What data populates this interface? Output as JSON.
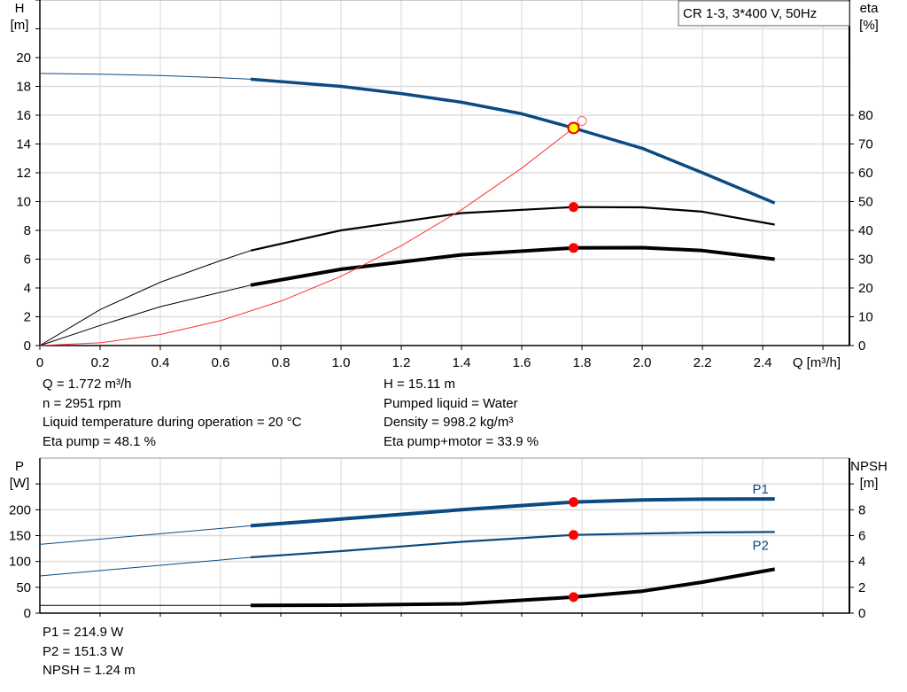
{
  "chart_data": [
    {
      "type": "line",
      "title_box": "CR 1-3, 3*400 V, 50Hz",
      "xlabel": "Q [m³/h]",
      "ylabel": [
        "H",
        "[m]"
      ],
      "y2label": [
        "eta",
        "[%]"
      ],
      "xlim": [
        0,
        2.688
      ],
      "ylim": [
        0,
        24
      ],
      "y2lim": [
        0,
        120
      ],
      "xticks": [
        "0",
        "0.2",
        "0.4",
        "0.6",
        "0.8",
        "1.0",
        "1.2",
        "1.4",
        "1.6",
        "1.8",
        "2.0",
        "2.2",
        "2.4"
      ],
      "yticks": [
        "0",
        "2",
        "4",
        "6",
        "8",
        "10",
        "12",
        "14",
        "16",
        "18",
        "20"
      ],
      "y2ticks": [
        "0",
        "10",
        "20",
        "30",
        "40",
        "50",
        "60",
        "70",
        "80"
      ],
      "grid": true,
      "series": [
        {
          "id": "H",
          "axis": "left",
          "color": "#0b4a82",
          "thick_from": 0.7,
          "x": [
            0,
            0.2,
            0.4,
            0.6,
            0.7,
            1.0,
            1.2,
            1.4,
            1.6,
            1.772,
            2.0,
            2.2,
            2.44
          ],
          "y": [
            18.9,
            18.85,
            18.75,
            18.6,
            18.5,
            18.0,
            17.5,
            16.9,
            16.1,
            15.11,
            13.7,
            12.0,
            9.9
          ]
        },
        {
          "id": "eta_pump",
          "axis": "right",
          "color": "#000000",
          "thick_from": 0.7,
          "x": [
            0,
            0.2,
            0.4,
            0.6,
            0.7,
            1.0,
            1.4,
            1.772,
            2.0,
            2.2,
            2.44
          ],
          "y": [
            0,
            12.5,
            22,
            29.5,
            33,
            40,
            46,
            48.1,
            48,
            46.5,
            42
          ]
        },
        {
          "id": "eta_pump_motor",
          "axis": "right",
          "color": "#000000",
          "thick_from": 0.7,
          "bold": true,
          "x": [
            0,
            0.2,
            0.4,
            0.6,
            0.7,
            1.0,
            1.4,
            1.772,
            2.0,
            2.2,
            2.44
          ],
          "y": [
            0,
            7,
            13.5,
            18.5,
            21,
            26.5,
            31.5,
            33.9,
            34,
            33,
            30
          ]
        },
        {
          "id": "system",
          "axis": "left",
          "color": "#ff3030",
          "x": [
            0,
            0.2,
            0.4,
            0.6,
            0.8,
            1.0,
            1.2,
            1.4,
            1.6,
            1.772
          ],
          "y": [
            0,
            0.19,
            0.77,
            1.73,
            3.08,
            4.81,
            6.93,
            9.43,
            12.32,
            15.11
          ]
        }
      ],
      "duty_points": [
        {
          "axis": "left",
          "x": 1.772,
          "y": 15.11,
          "color": "#ffff00"
        },
        {
          "axis": "right",
          "x": 1.772,
          "y": 48.1
        },
        {
          "axis": "right",
          "x": 1.772,
          "y": 33.9
        }
      ],
      "open_point": {
        "x": 1.8,
        "y": 15.6
      }
    },
    {
      "type": "line",
      "ylabel": [
        "P",
        "[W]"
      ],
      "y2label": [
        "NPSH",
        "[m]"
      ],
      "xlim": [
        0,
        2.688
      ],
      "ylim": [
        0,
        300
      ],
      "y2lim": [
        0,
        12
      ],
      "yticks": [
        "0",
        "50",
        "100",
        "150",
        "200"
      ],
      "y2ticks": [
        "0",
        "2",
        "4",
        "6",
        "8"
      ],
      "grid": true,
      "series": [
        {
          "id": "P1",
          "name": "P1",
          "axis": "left",
          "color": "#0b4a82",
          "thick_from": 0.7,
          "bold": true,
          "x": [
            0,
            0.7,
            1.0,
            1.4,
            1.772,
            2.0,
            2.2,
            2.44
          ],
          "y": [
            133,
            169,
            182,
            200,
            214.9,
            219,
            220.5,
            221
          ]
        },
        {
          "id": "P2",
          "name": "P2",
          "axis": "left",
          "color": "#0b4a82",
          "thick_from": 0.7,
          "x": [
            0,
            0.7,
            1.0,
            1.4,
            1.772,
            2.0,
            2.2,
            2.44
          ],
          "y": [
            72,
            108,
            120,
            138,
            151.3,
            154,
            156,
            157
          ]
        },
        {
          "id": "NPSH",
          "axis": "right",
          "color": "#000000",
          "thick_from": 0.7,
          "bold": true,
          "x": [
            0,
            0.7,
            1.0,
            1.4,
            1.772,
            2.0,
            2.2,
            2.44
          ],
          "y": [
            0.6,
            0.6,
            0.62,
            0.72,
            1.24,
            1.7,
            2.4,
            3.4
          ]
        }
      ],
      "duty_points": [
        {
          "axis": "left",
          "x": 1.772,
          "y": 214.9
        },
        {
          "axis": "left",
          "x": 1.772,
          "y": 151.3
        },
        {
          "axis": "right",
          "x": 1.772,
          "y": 1.24
        }
      ]
    }
  ],
  "info_top_left": [
    "Q = 1.772 m³/h",
    "n = 2951 rpm",
    "Liquid temperature during operation = 20 °C",
    "Eta pump = 48.1 %"
  ],
  "info_top_right": [
    "H = 15.11 m",
    "Pumped liquid = Water",
    "Density = 998.2 kg/m³",
    "Eta pump+motor = 33.9 %"
  ],
  "info_bottom": [
    "P1 = 214.9 W",
    "P2 = 151.3 W",
    "NPSH = 1.24 m"
  ]
}
